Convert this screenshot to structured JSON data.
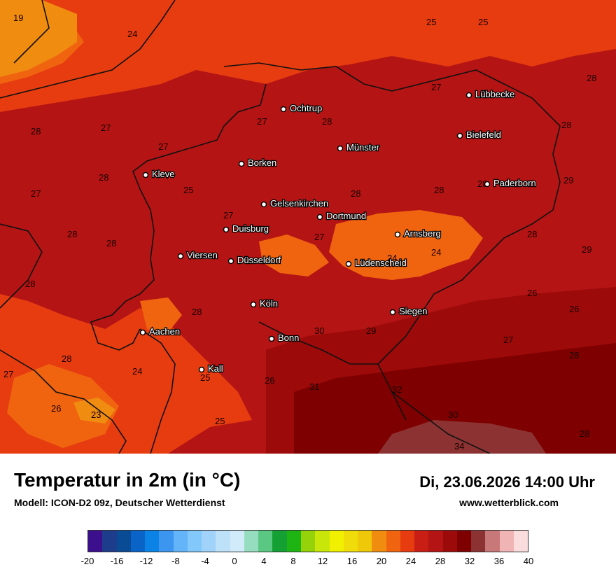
{
  "title": "Temperatur in 2m (in °C)",
  "model": "Modell: ICON-D2 09z, Deutscher Wetterdienst",
  "datetime": "Di, 23.06.2026 14:00 Uhr",
  "website": "www.wetterblick.com",
  "colors": {
    "t23": "#f08c10",
    "t24": "#f06410",
    "t25": "#e63c10",
    "t27": "#c81e14",
    "t28": "#b41414",
    "t30": "#9c0a0a",
    "t32": "#7e0000",
    "t34": "#8c3232",
    "border": "#111111"
  },
  "cities": [
    {
      "name": "Lübbecke"
    },
    {
      "name": "Ochtrup"
    },
    {
      "name": "Bielefeld"
    },
    {
      "name": "Münster"
    },
    {
      "name": "Borken"
    },
    {
      "name": "Kleve"
    },
    {
      "name": "Paderborn"
    },
    {
      "name": "Gelsenkirchen"
    },
    {
      "name": "Dortmund"
    },
    {
      "name": "Duisburg"
    },
    {
      "name": "Arnsberg"
    },
    {
      "name": "Viersen"
    },
    {
      "name": "Düsseldorf"
    },
    {
      "name": "Lüdenscheid"
    },
    {
      "name": "Köln"
    },
    {
      "name": "Siegen"
    },
    {
      "name": "Aachen"
    },
    {
      "name": "Bonn"
    },
    {
      "name": "Kall"
    }
  ],
  "temperature_values": [
    "19",
    "24",
    "25",
    "25",
    "28",
    "27",
    "27",
    "28",
    "28",
    "28",
    "27",
    "27",
    "28",
    "28",
    "27",
    "25",
    "28",
    "28",
    "28",
    "28",
    "29",
    "27",
    "28",
    "27",
    "24",
    "28",
    "24",
    "29",
    "28",
    "26",
    "28",
    "26",
    "30",
    "29",
    "27",
    "28",
    "24",
    "25",
    "26",
    "31",
    "32",
    "30",
    "27",
    "26",
    "23",
    "25",
    "34",
    "28"
  ],
  "legend": {
    "ticks": [
      "-20",
      "-16",
      "-12",
      "-8",
      "-4",
      "0",
      "4",
      "8",
      "12",
      "16",
      "20",
      "24",
      "28",
      "32",
      "36",
      "40"
    ],
    "colors": [
      "#3c0f8c",
      "#1e3c8c",
      "#0a4b96",
      "#0a64c8",
      "#0a82e6",
      "#3c96f0",
      "#64b4fa",
      "#82c8fa",
      "#a0d2fa",
      "#bee1fa",
      "#d2ebfa",
      "#96dcbe",
      "#5ac882",
      "#14a032",
      "#1eb414",
      "#96d20a",
      "#c8e60a",
      "#f0f000",
      "#f0dc0a",
      "#f0c80a",
      "#f08c10",
      "#f06410",
      "#e63c10",
      "#c81e14",
      "#b41414",
      "#9c0a0a",
      "#7e0000",
      "#8c3232",
      "#c87878",
      "#f0b4b4",
      "#fadcdc"
    ]
  }
}
